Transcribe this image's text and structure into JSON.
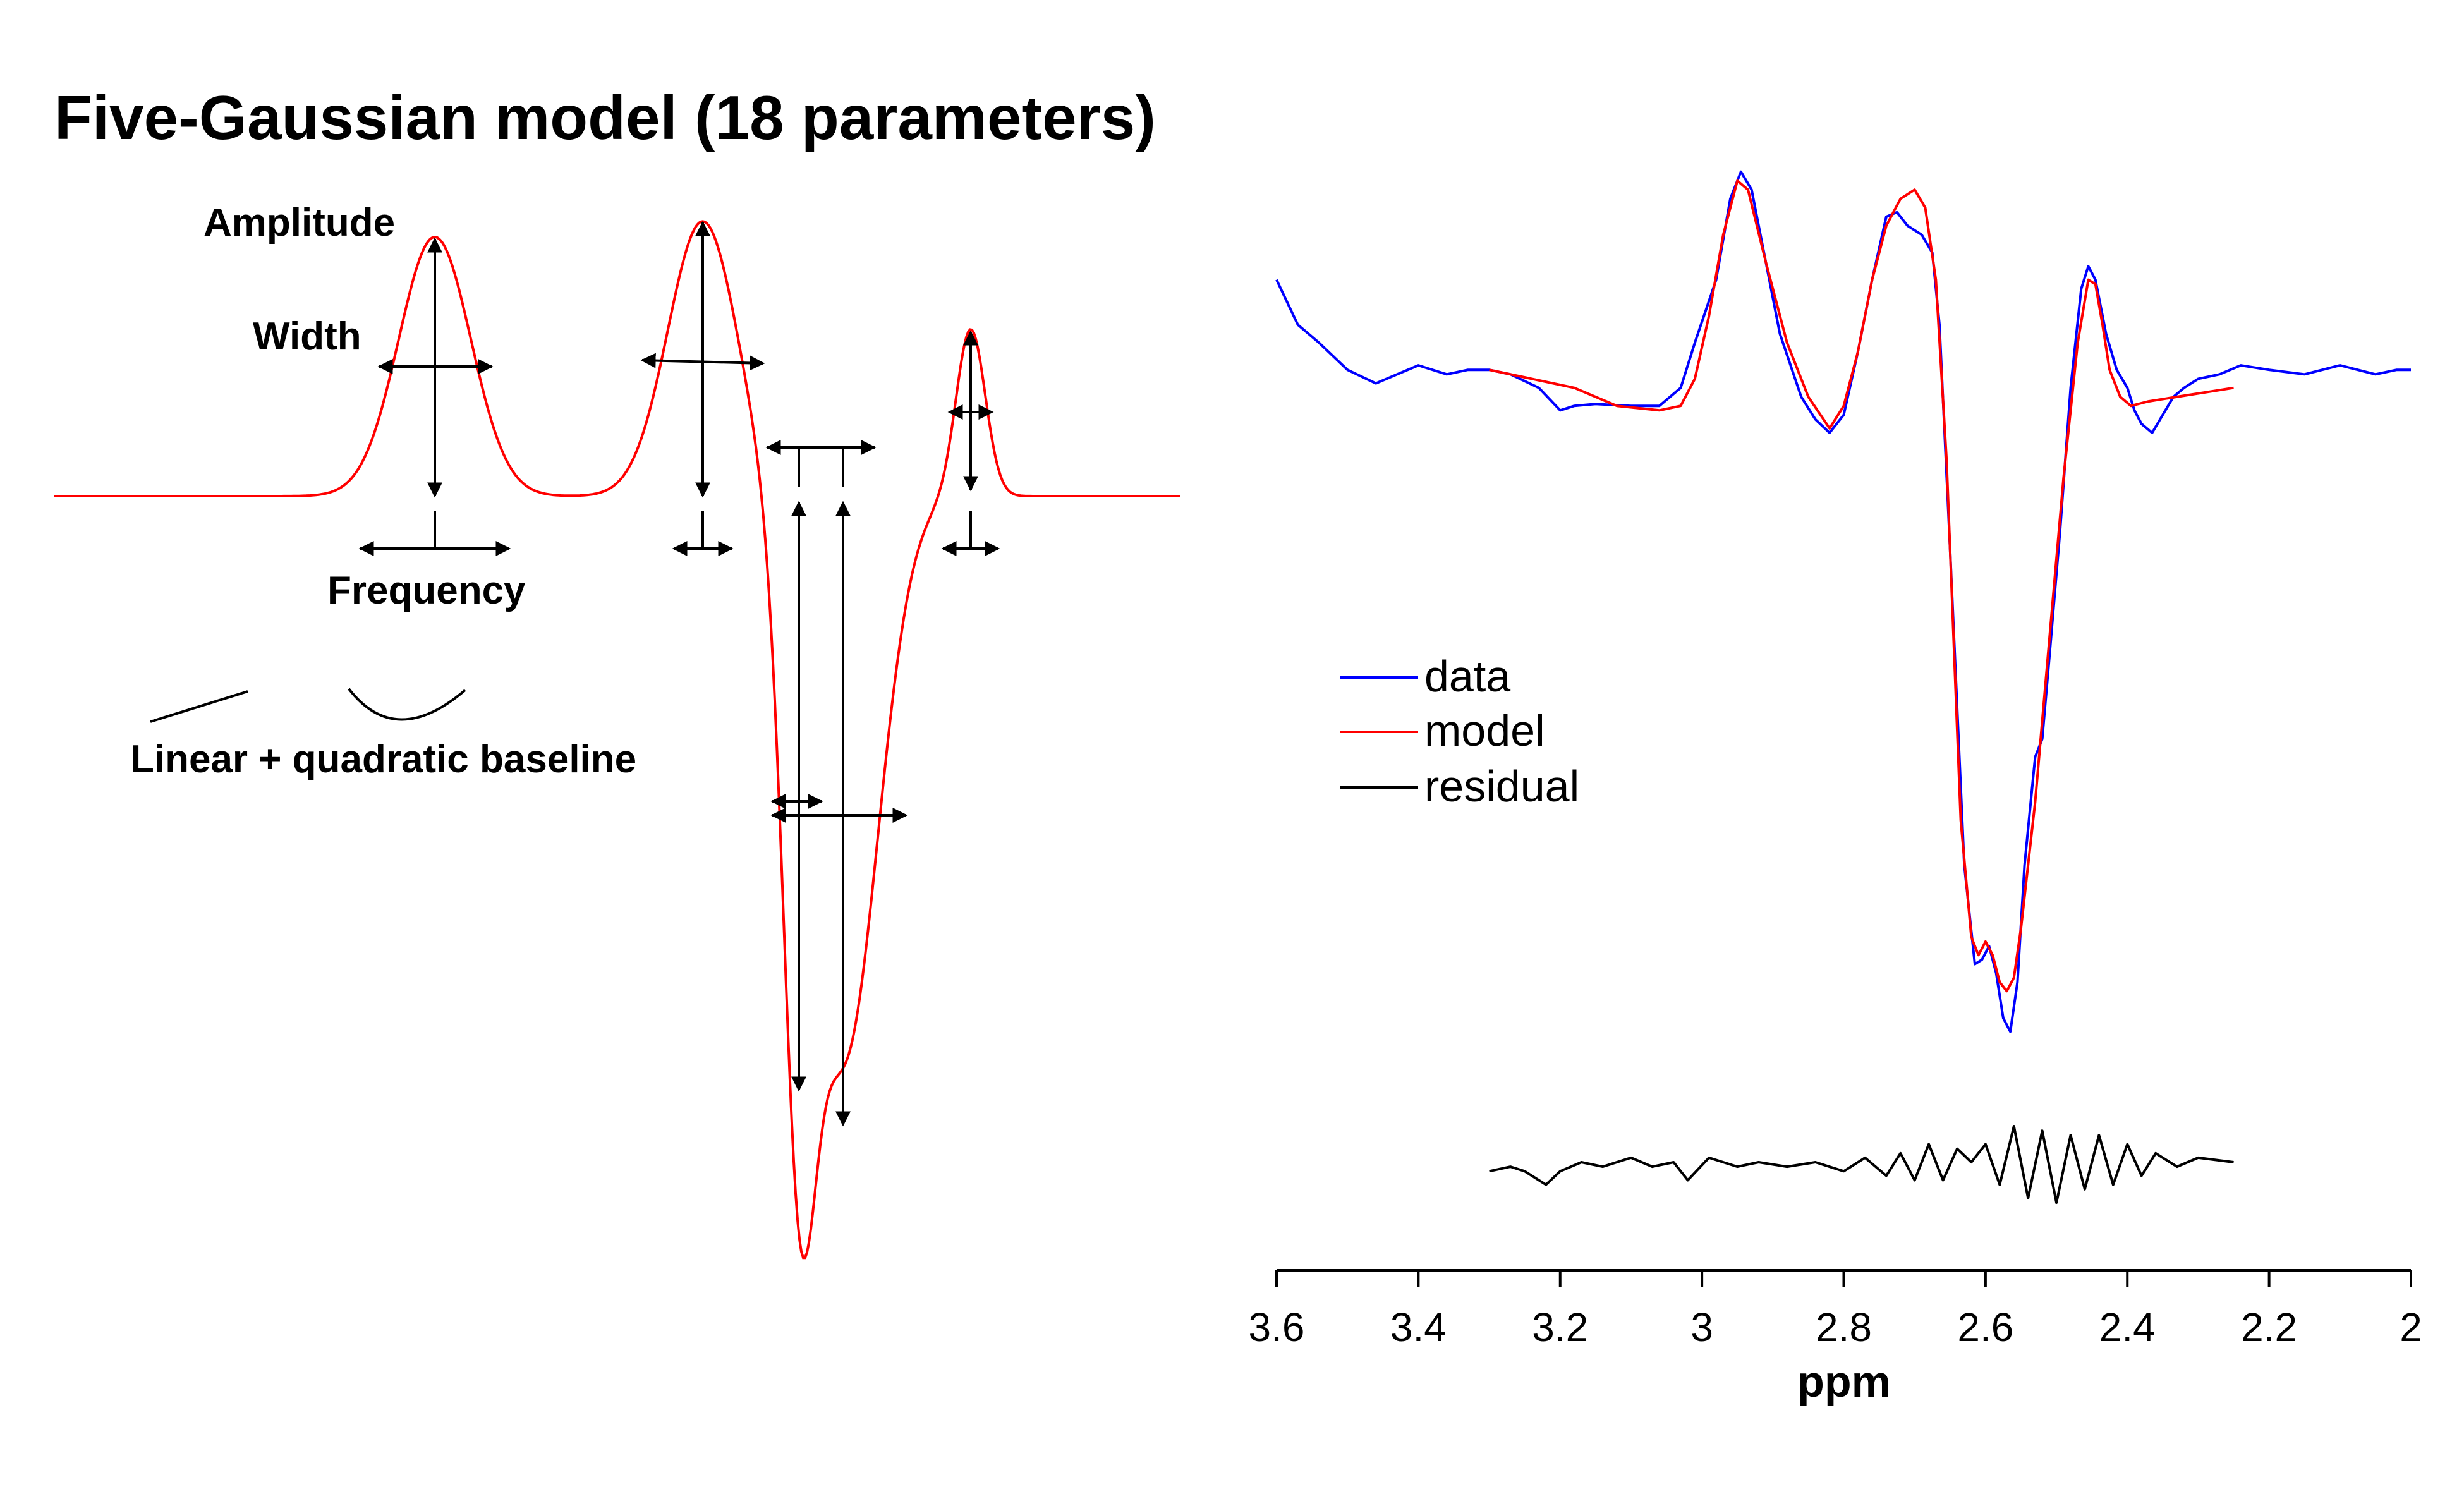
{
  "title": "Five-Gaussian model (18 parameters)",
  "diagram": {
    "labels": {
      "amplitude": "Amplitude",
      "width": "Width",
      "frequency": "Frequency",
      "baseline": "Linear + quadratic baseline"
    }
  },
  "colors": {
    "data": "#0000ff",
    "model": "#ff0000",
    "residual": "#000000"
  },
  "chart_data": {
    "type": "line",
    "xlabel": "ppm",
    "x_reversed": true,
    "xlim": [
      3.6,
      2.0
    ],
    "xticks": [
      3.6,
      3.4,
      3.2,
      3,
      2.8,
      2.6,
      2.4,
      2.2,
      2
    ],
    "ylim": [
      -1.0,
      0.33
    ],
    "grid": false,
    "legend_position": "middle-left",
    "series": [
      {
        "name": "data",
        "color": "#0000ff",
        "points": [
          [
            3.6,
            0.1
          ],
          [
            3.57,
            0.05
          ],
          [
            3.54,
            0.03
          ],
          [
            3.5,
            0.0
          ],
          [
            3.46,
            -0.015
          ],
          [
            3.43,
            -0.005
          ],
          [
            3.4,
            0.005
          ],
          [
            3.36,
            -0.005
          ],
          [
            3.33,
            0.0
          ],
          [
            3.3,
            0.0
          ],
          [
            3.27,
            -0.005
          ],
          [
            3.23,
            -0.02
          ],
          [
            3.2,
            -0.045
          ],
          [
            3.18,
            -0.04
          ],
          [
            3.15,
            -0.038
          ],
          [
            3.1,
            -0.04
          ],
          [
            3.06,
            -0.04
          ],
          [
            3.03,
            -0.02
          ],
          [
            3.01,
            0.03
          ],
          [
            2.98,
            0.1
          ],
          [
            2.96,
            0.19
          ],
          [
            2.945,
            0.22
          ],
          [
            2.93,
            0.2
          ],
          [
            2.91,
            0.12
          ],
          [
            2.89,
            0.04
          ],
          [
            2.86,
            -0.03
          ],
          [
            2.84,
            -0.055
          ],
          [
            2.82,
            -0.07
          ],
          [
            2.8,
            -0.05
          ],
          [
            2.78,
            0.02
          ],
          [
            2.76,
            0.1
          ],
          [
            2.74,
            0.17
          ],
          [
            2.725,
            0.175
          ],
          [
            2.71,
            0.16
          ],
          [
            2.69,
            0.15
          ],
          [
            2.675,
            0.13
          ],
          [
            2.665,
            0.05
          ],
          [
            2.65,
            -0.2
          ],
          [
            2.63,
            -0.55
          ],
          [
            2.615,
            -0.66
          ],
          [
            2.605,
            -0.655
          ],
          [
            2.595,
            -0.64
          ],
          [
            2.585,
            -0.67
          ],
          [
            2.575,
            -0.72
          ],
          [
            2.565,
            -0.735
          ],
          [
            2.555,
            -0.68
          ],
          [
            2.545,
            -0.55
          ],
          [
            2.53,
            -0.43
          ],
          [
            2.52,
            -0.41
          ],
          [
            2.51,
            -0.32
          ],
          [
            2.495,
            -0.18
          ],
          [
            2.48,
            -0.02
          ],
          [
            2.465,
            0.09
          ],
          [
            2.455,
            0.115
          ],
          [
            2.445,
            0.1
          ],
          [
            2.43,
            0.04
          ],
          [
            2.415,
            0.0
          ],
          [
            2.4,
            -0.02
          ],
          [
            2.39,
            -0.045
          ],
          [
            2.38,
            -0.06
          ],
          [
            2.365,
            -0.07
          ],
          [
            2.35,
            -0.05
          ],
          [
            2.335,
            -0.03
          ],
          [
            2.32,
            -0.02
          ],
          [
            2.3,
            -0.01
          ],
          [
            2.27,
            -0.005
          ],
          [
            2.24,
            0.005
          ],
          [
            2.2,
            0.0
          ],
          [
            2.15,
            -0.005
          ],
          [
            2.1,
            0.005
          ],
          [
            2.05,
            -0.005
          ],
          [
            2.02,
            0.0
          ],
          [
            2.0,
            0.0
          ]
        ]
      },
      {
        "name": "model",
        "color": "#ff0000",
        "points": [
          [
            3.3,
            0.0
          ],
          [
            3.24,
            -0.01
          ],
          [
            3.18,
            -0.02
          ],
          [
            3.12,
            -0.04
          ],
          [
            3.06,
            -0.045
          ],
          [
            3.03,
            -0.04
          ],
          [
            3.01,
            -0.01
          ],
          [
            2.99,
            0.06
          ],
          [
            2.97,
            0.15
          ],
          [
            2.95,
            0.21
          ],
          [
            2.935,
            0.2
          ],
          [
            2.91,
            0.12
          ],
          [
            2.88,
            0.03
          ],
          [
            2.85,
            -0.03
          ],
          [
            2.82,
            -0.065
          ],
          [
            2.8,
            -0.04
          ],
          [
            2.78,
            0.02
          ],
          [
            2.76,
            0.1
          ],
          [
            2.74,
            0.16
          ],
          [
            2.72,
            0.19
          ],
          [
            2.7,
            0.2
          ],
          [
            2.685,
            0.18
          ],
          [
            2.67,
            0.1
          ],
          [
            2.655,
            -0.1
          ],
          [
            2.645,
            -0.3
          ],
          [
            2.635,
            -0.5
          ],
          [
            2.62,
            -0.63
          ],
          [
            2.61,
            -0.65
          ],
          [
            2.6,
            -0.635
          ],
          [
            2.59,
            -0.65
          ],
          [
            2.58,
            -0.68
          ],
          [
            2.57,
            -0.69
          ],
          [
            2.56,
            -0.675
          ],
          [
            2.55,
            -0.62
          ],
          [
            2.53,
            -0.48
          ],
          [
            2.51,
            -0.3
          ],
          [
            2.49,
            -0.12
          ],
          [
            2.47,
            0.03
          ],
          [
            2.455,
            0.1
          ],
          [
            2.445,
            0.095
          ],
          [
            2.435,
            0.05
          ],
          [
            2.425,
            0.0
          ],
          [
            2.41,
            -0.03
          ],
          [
            2.395,
            -0.04
          ],
          [
            2.37,
            -0.035
          ],
          [
            2.33,
            -0.03
          ],
          [
            2.29,
            -0.025
          ],
          [
            2.25,
            -0.02
          ]
        ]
      },
      {
        "name": "residual",
        "color": "#000000",
        "points": [
          [
            3.3,
            -0.89
          ],
          [
            3.27,
            -0.885
          ],
          [
            3.25,
            -0.89
          ],
          [
            3.22,
            -0.905
          ],
          [
            3.2,
            -0.89
          ],
          [
            3.17,
            -0.88
          ],
          [
            3.14,
            -0.885
          ],
          [
            3.1,
            -0.875
          ],
          [
            3.07,
            -0.885
          ],
          [
            3.04,
            -0.88
          ],
          [
            3.02,
            -0.9
          ],
          [
            2.99,
            -0.875
          ],
          [
            2.95,
            -0.885
          ],
          [
            2.92,
            -0.88
          ],
          [
            2.88,
            -0.885
          ],
          [
            2.84,
            -0.88
          ],
          [
            2.8,
            -0.89
          ],
          [
            2.77,
            -0.875
          ],
          [
            2.74,
            -0.895
          ],
          [
            2.72,
            -0.87
          ],
          [
            2.7,
            -0.9
          ],
          [
            2.68,
            -0.86
          ],
          [
            2.66,
            -0.9
          ],
          [
            2.64,
            -0.865
          ],
          [
            2.62,
            -0.88
          ],
          [
            2.6,
            -0.86
          ],
          [
            2.58,
            -0.905
          ],
          [
            2.56,
            -0.84
          ],
          [
            2.54,
            -0.92
          ],
          [
            2.52,
            -0.845
          ],
          [
            2.5,
            -0.925
          ],
          [
            2.48,
            -0.85
          ],
          [
            2.46,
            -0.91
          ],
          [
            2.44,
            -0.85
          ],
          [
            2.42,
            -0.905
          ],
          [
            2.4,
            -0.86
          ],
          [
            2.38,
            -0.895
          ],
          [
            2.36,
            -0.87
          ],
          [
            2.33,
            -0.885
          ],
          [
            2.3,
            -0.875
          ],
          [
            2.25,
            -0.88
          ]
        ]
      }
    ]
  }
}
